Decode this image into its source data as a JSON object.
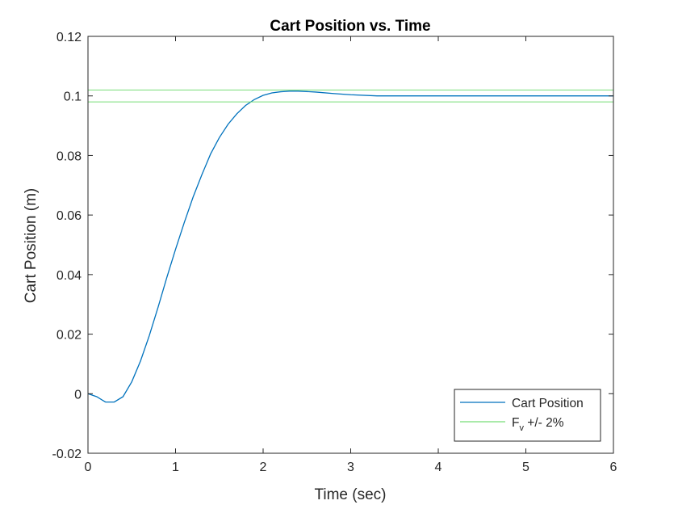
{
  "chart_data": {
    "type": "line",
    "title": "Cart Position vs. Time",
    "xlabel": "Time (sec)",
    "ylabel": "Cart Position (m)",
    "xlim": [
      0,
      6
    ],
    "ylim": [
      -0.02,
      0.12
    ],
    "xticks": [
      0,
      1,
      2,
      3,
      4,
      5,
      6
    ],
    "xtick_labels": [
      "0",
      "1",
      "2",
      "3",
      "4",
      "5",
      "6"
    ],
    "yticks": [
      -0.02,
      0,
      0.02,
      0.04,
      0.06,
      0.08,
      0.1,
      0.12
    ],
    "ytick_labels": [
      "-0.02",
      "0",
      "0.02",
      "0.04",
      "0.06",
      "0.08",
      "0.1",
      "0.12"
    ],
    "grid": false,
    "legend_position": "bottom-right",
    "series": [
      {
        "name": "Cart Position",
        "color": "#0072BD",
        "x": [
          0,
          0.1,
          0.2,
          0.3,
          0.4,
          0.5,
          0.6,
          0.7,
          0.8,
          0.9,
          1.0,
          1.1,
          1.2,
          1.3,
          1.4,
          1.5,
          1.6,
          1.7,
          1.8,
          1.9,
          2.0,
          2.1,
          2.2,
          2.3,
          2.4,
          2.6,
          2.8,
          3.0,
          3.3,
          3.6,
          4.0,
          4.5,
          5.0,
          5.5,
          6.0
        ],
        "y": [
          0,
          -0.001,
          -0.0028,
          -0.0028,
          -0.001,
          0.004,
          0.011,
          0.0195,
          0.029,
          0.039,
          0.0485,
          0.0575,
          0.066,
          0.0735,
          0.0805,
          0.086,
          0.0905,
          0.094,
          0.0968,
          0.0988,
          0.1002,
          0.101,
          0.1014,
          0.1016,
          0.1016,
          0.1013,
          0.1008,
          0.1004,
          0.1,
          0.1,
          0.1,
          0.1,
          0.1,
          0.1,
          0.1
        ]
      },
      {
        "name": "F_v +/- 2%",
        "color": "#77DD77",
        "x": [
          0,
          6
        ],
        "y": [
          0.102,
          0.102
        ]
      },
      {
        "name": "",
        "color": "#77DD77",
        "x": [
          0,
          6
        ],
        "y": [
          0.098,
          0.098
        ]
      }
    ],
    "legend": [
      {
        "label": "Cart Position",
        "color": "#0072BD"
      },
      {
        "label_main": "F",
        "label_sub": "v",
        "label_tail": " +/- 2%",
        "color": "#77DD77"
      }
    ]
  }
}
